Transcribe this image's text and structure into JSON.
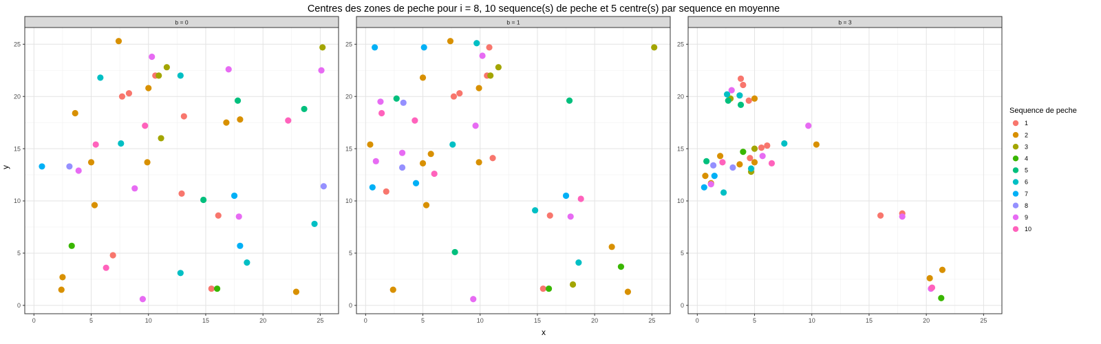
{
  "chart_data": {
    "type": "scatter",
    "title": "Centres des zones de peche pour i = 8, 10 sequence(s) de peche et 5 centre(s) par sequence en moyenne",
    "xlabel": "x",
    "ylabel": "y",
    "xlim": [
      -0.8,
      26.6
    ],
    "ylim": [
      -0.8,
      26.6
    ],
    "xticks": [
      0,
      5,
      10,
      15,
      20,
      25
    ],
    "yticks": [
      0,
      5,
      10,
      15,
      20,
      25
    ],
    "grid": true,
    "legend": {
      "title": "Sequence de peche",
      "placement": "right",
      "entries": [
        {
          "label": "1",
          "color": "#F8766D"
        },
        {
          "label": "2",
          "color": "#D89000"
        },
        {
          "label": "3",
          "color": "#A3A500"
        },
        {
          "label": "4",
          "color": "#39B600"
        },
        {
          "label": "5",
          "color": "#00BF7D"
        },
        {
          "label": "6",
          "color": "#00BFC4"
        },
        {
          "label": "7",
          "color": "#00B0F6"
        },
        {
          "label": "8",
          "color": "#9590FF"
        },
        {
          "label": "9",
          "color": "#E76BF3"
        },
        {
          "label": "10",
          "color": "#FF62BC"
        }
      ]
    },
    "panels": [
      {
        "label": "b = 0",
        "points": [
          {
            "s": 1,
            "x": 10.6,
            "y": 22.0
          },
          {
            "s": 1,
            "x": 7.7,
            "y": 20.0
          },
          {
            "s": 1,
            "x": 8.3,
            "y": 20.3
          },
          {
            "s": 1,
            "x": 13.1,
            "y": 18.1
          },
          {
            "s": 1,
            "x": 12.9,
            "y": 10.7
          },
          {
            "s": 1,
            "x": 16.1,
            "y": 8.6
          },
          {
            "s": 1,
            "x": 6.9,
            "y": 4.8
          },
          {
            "s": 1,
            "x": 15.5,
            "y": 1.6
          },
          {
            "s": 2,
            "x": 7.4,
            "y": 25.3
          },
          {
            "s": 2,
            "x": 10.0,
            "y": 20.8
          },
          {
            "s": 2,
            "x": 3.6,
            "y": 18.4
          },
          {
            "s": 2,
            "x": 16.8,
            "y": 17.5
          },
          {
            "s": 2,
            "x": 18.0,
            "y": 17.8
          },
          {
            "s": 2,
            "x": 5.0,
            "y": 13.7
          },
          {
            "s": 2,
            "x": 9.9,
            "y": 13.7
          },
          {
            "s": 2,
            "x": 5.3,
            "y": 9.6
          },
          {
            "s": 2,
            "x": 2.5,
            "y": 2.7
          },
          {
            "s": 2,
            "x": 2.4,
            "y": 1.5
          },
          {
            "s": 2,
            "x": 22.9,
            "y": 1.3
          },
          {
            "s": 3,
            "x": 11.6,
            "y": 22.8
          },
          {
            "s": 3,
            "x": 10.9,
            "y": 22.0
          },
          {
            "s": 3,
            "x": 11.1,
            "y": 16.0
          },
          {
            "s": 3,
            "x": 25.2,
            "y": 24.7
          },
          {
            "s": 4,
            "x": 3.3,
            "y": 5.7
          },
          {
            "s": 4,
            "x": 16.0,
            "y": 1.6
          },
          {
            "s": 5,
            "x": 17.8,
            "y": 19.6
          },
          {
            "s": 5,
            "x": 23.6,
            "y": 18.8
          },
          {
            "s": 5,
            "x": 14.8,
            "y": 10.1
          },
          {
            "s": 6,
            "x": 5.8,
            "y": 21.8
          },
          {
            "s": 6,
            "x": 12.8,
            "y": 22.0
          },
          {
            "s": 6,
            "x": 7.6,
            "y": 15.5
          },
          {
            "s": 6,
            "x": 24.5,
            "y": 7.8
          },
          {
            "s": 6,
            "x": 12.8,
            "y": 3.1
          },
          {
            "s": 6,
            "x": 18.6,
            "y": 4.1
          },
          {
            "s": 7,
            "x": 0.7,
            "y": 13.3
          },
          {
            "s": 7,
            "x": 17.5,
            "y": 10.5
          },
          {
            "s": 7,
            "x": 18.0,
            "y": 5.7
          },
          {
            "s": 8,
            "x": 3.1,
            "y": 13.3
          },
          {
            "s": 8,
            "x": 25.3,
            "y": 11.4
          },
          {
            "s": 9,
            "x": 10.3,
            "y": 23.8
          },
          {
            "s": 9,
            "x": 17.0,
            "y": 22.6
          },
          {
            "s": 9,
            "x": 25.1,
            "y": 22.5
          },
          {
            "s": 9,
            "x": 3.9,
            "y": 12.9
          },
          {
            "s": 9,
            "x": 8.8,
            "y": 11.2
          },
          {
            "s": 9,
            "x": 17.9,
            "y": 8.5
          },
          {
            "s": 9,
            "x": 9.5,
            "y": 0.6
          },
          {
            "s": 10,
            "x": 9.7,
            "y": 17.2
          },
          {
            "s": 10,
            "x": 5.4,
            "y": 15.4
          },
          {
            "s": 10,
            "x": 22.2,
            "y": 17.7
          },
          {
            "s": 10,
            "x": 6.3,
            "y": 3.6
          }
        ]
      },
      {
        "label": "b = 1",
        "points": [
          {
            "s": 1,
            "x": 10.8,
            "y": 24.7
          },
          {
            "s": 1,
            "x": 10.6,
            "y": 22.0
          },
          {
            "s": 1,
            "x": 7.7,
            "y": 20.0
          },
          {
            "s": 1,
            "x": 8.2,
            "y": 20.3
          },
          {
            "s": 1,
            "x": 11.1,
            "y": 14.1
          },
          {
            "s": 1,
            "x": 1.8,
            "y": 10.9
          },
          {
            "s": 1,
            "x": 16.1,
            "y": 8.6
          },
          {
            "s": 1,
            "x": 15.5,
            "y": 1.6
          },
          {
            "s": 2,
            "x": 7.4,
            "y": 25.3
          },
          {
            "s": 2,
            "x": 5.0,
            "y": 21.8
          },
          {
            "s": 2,
            "x": 9.9,
            "y": 20.8
          },
          {
            "s": 2,
            "x": 0.4,
            "y": 15.4
          },
          {
            "s": 2,
            "x": 5.7,
            "y": 14.5
          },
          {
            "s": 2,
            "x": 5.0,
            "y": 13.6
          },
          {
            "s": 2,
            "x": 9.9,
            "y": 13.7
          },
          {
            "s": 2,
            "x": 5.3,
            "y": 9.6
          },
          {
            "s": 2,
            "x": 2.4,
            "y": 1.5
          },
          {
            "s": 2,
            "x": 21.5,
            "y": 5.6
          },
          {
            "s": 2,
            "x": 22.9,
            "y": 1.3
          },
          {
            "s": 3,
            "x": 11.6,
            "y": 22.8
          },
          {
            "s": 3,
            "x": 10.9,
            "y": 22.0
          },
          {
            "s": 3,
            "x": 25.2,
            "y": 24.7
          },
          {
            "s": 3,
            "x": 18.1,
            "y": 2.0
          },
          {
            "s": 4,
            "x": 22.3,
            "y": 3.7
          },
          {
            "s": 4,
            "x": 16.0,
            "y": 1.6
          },
          {
            "s": 5,
            "x": 2.7,
            "y": 19.8
          },
          {
            "s": 5,
            "x": 17.8,
            "y": 19.6
          },
          {
            "s": 5,
            "x": 7.8,
            "y": 5.1
          },
          {
            "s": 6,
            "x": 9.7,
            "y": 25.1
          },
          {
            "s": 6,
            "x": 7.6,
            "y": 15.4
          },
          {
            "s": 6,
            "x": 14.8,
            "y": 9.1
          },
          {
            "s": 6,
            "x": 18.6,
            "y": 4.1
          },
          {
            "s": 7,
            "x": 0.8,
            "y": 24.7
          },
          {
            "s": 7,
            "x": 5.1,
            "y": 24.7
          },
          {
            "s": 7,
            "x": 0.6,
            "y": 11.3
          },
          {
            "s": 7,
            "x": 4.4,
            "y": 11.7
          },
          {
            "s": 7,
            "x": 17.5,
            "y": 10.5
          },
          {
            "s": 8,
            "x": 3.3,
            "y": 19.4
          },
          {
            "s": 8,
            "x": 3.2,
            "y": 13.2
          },
          {
            "s": 9,
            "x": 10.2,
            "y": 23.9
          },
          {
            "s": 9,
            "x": 1.3,
            "y": 19.5
          },
          {
            "s": 9,
            "x": 9.6,
            "y": 17.2
          },
          {
            "s": 9,
            "x": 3.2,
            "y": 14.6
          },
          {
            "s": 9,
            "x": 0.9,
            "y": 13.8
          },
          {
            "s": 9,
            "x": 17.9,
            "y": 8.5
          },
          {
            "s": 9,
            "x": 9.4,
            "y": 0.6
          },
          {
            "s": 10,
            "x": 1.4,
            "y": 18.4
          },
          {
            "s": 10,
            "x": 4.3,
            "y": 17.7
          },
          {
            "s": 10,
            "x": 6.0,
            "y": 12.6
          },
          {
            "s": 10,
            "x": 18.8,
            "y": 10.2
          }
        ]
      },
      {
        "label": "b = 3",
        "points": [
          {
            "s": 1,
            "x": 3.8,
            "y": 21.7
          },
          {
            "s": 1,
            "x": 4.0,
            "y": 21.1
          },
          {
            "s": 1,
            "x": 4.5,
            "y": 19.6
          },
          {
            "s": 1,
            "x": 5.6,
            "y": 15.1
          },
          {
            "s": 1,
            "x": 6.1,
            "y": 15.3
          },
          {
            "s": 1,
            "x": 4.6,
            "y": 14.1
          },
          {
            "s": 1,
            "x": 16.0,
            "y": 8.6
          },
          {
            "s": 1,
            "x": 17.9,
            "y": 8.8
          },
          {
            "s": 2,
            "x": 5.0,
            "y": 19.8
          },
          {
            "s": 2,
            "x": 2.0,
            "y": 14.3
          },
          {
            "s": 2,
            "x": 10.4,
            "y": 15.4
          },
          {
            "s": 2,
            "x": 3.7,
            "y": 13.5
          },
          {
            "s": 2,
            "x": 5.0,
            "y": 13.7
          },
          {
            "s": 2,
            "x": 0.7,
            "y": 12.4
          },
          {
            "s": 2,
            "x": 20.3,
            "y": 2.6
          },
          {
            "s": 2,
            "x": 21.4,
            "y": 3.4
          },
          {
            "s": 2,
            "x": 1.2,
            "y": 11.7
          },
          {
            "s": 3,
            "x": 2.9,
            "y": 19.8
          },
          {
            "s": 3,
            "x": 5.0,
            "y": 15.0
          },
          {
            "s": 3,
            "x": 4.7,
            "y": 12.8
          },
          {
            "s": 4,
            "x": 4.0,
            "y": 14.7
          },
          {
            "s": 4,
            "x": 21.3,
            "y": 0.7
          },
          {
            "s": 5,
            "x": 2.7,
            "y": 19.6
          },
          {
            "s": 5,
            "x": 3.8,
            "y": 19.2
          },
          {
            "s": 5,
            "x": 0.8,
            "y": 13.8
          },
          {
            "s": 6,
            "x": 2.6,
            "y": 20.2
          },
          {
            "s": 6,
            "x": 3.7,
            "y": 20.1
          },
          {
            "s": 6,
            "x": 7.6,
            "y": 15.5
          },
          {
            "s": 6,
            "x": 4.7,
            "y": 13.1
          },
          {
            "s": 6,
            "x": 2.3,
            "y": 10.8
          },
          {
            "s": 7,
            "x": 0.6,
            "y": 11.3
          },
          {
            "s": 7,
            "x": 1.5,
            "y": 12.4
          },
          {
            "s": 8,
            "x": 1.4,
            "y": 13.4
          },
          {
            "s": 8,
            "x": 3.1,
            "y": 13.2
          },
          {
            "s": 9,
            "x": 3.0,
            "y": 20.6
          },
          {
            "s": 9,
            "x": 9.7,
            "y": 17.2
          },
          {
            "s": 9,
            "x": 5.7,
            "y": 14.3
          },
          {
            "s": 9,
            "x": 1.2,
            "y": 11.6
          },
          {
            "s": 9,
            "x": 17.9,
            "y": 8.5
          },
          {
            "s": 9,
            "x": 20.4,
            "y": 1.6
          },
          {
            "s": 10,
            "x": 2.2,
            "y": 13.7
          },
          {
            "s": 10,
            "x": 6.5,
            "y": 13.6
          },
          {
            "s": 10,
            "x": 20.5,
            "y": 1.7
          }
        ]
      }
    ]
  }
}
